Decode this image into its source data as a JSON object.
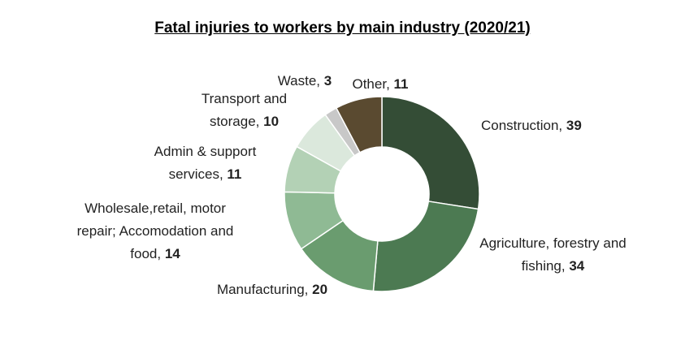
{
  "chart_data": {
    "type": "donut",
    "title": "Fatal injuries to workers by main industry (2020/21)",
    "categories": [
      "Construction,",
      "Agriculture, forestry and fishing,",
      "Manufacturing,",
      "Wholesale,retail, motor repair; Accomodation and food,",
      "Admin & support services,",
      "Transport and storage,",
      "Waste,",
      "Other,"
    ],
    "values": [
      39,
      34,
      20,
      14,
      11,
      10,
      3,
      11
    ],
    "colors": [
      "#344d36",
      "#4c7a52",
      "#6a9c6f",
      "#8fba94",
      "#b3d1b5",
      "#dbe8dc",
      "#c8c8c8",
      "#5a4a30"
    ]
  }
}
